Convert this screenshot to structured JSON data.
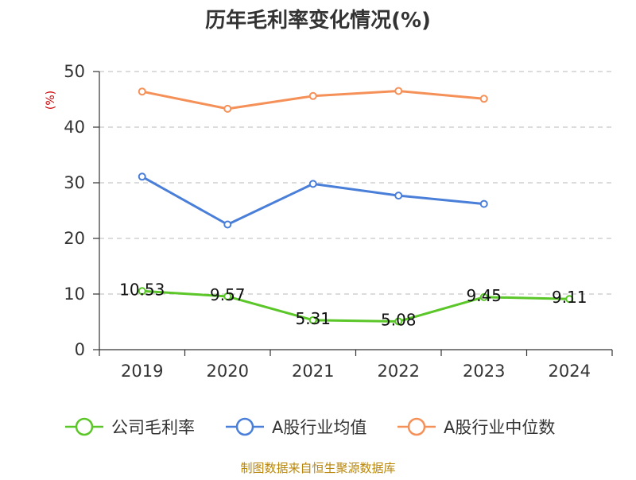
{
  "chart_data": {
    "type": "line",
    "title": "历年毛利率变化情况(%)",
    "ylabel": "(%)",
    "xlabel": "",
    "categories": [
      "2019",
      "2020",
      "2021",
      "2022",
      "2023",
      "2024"
    ],
    "ylim": [
      0,
      50
    ],
    "yticks": [
      0,
      10,
      20,
      30,
      40,
      50
    ],
    "grid": true,
    "legend_position": "bottom",
    "series": [
      {
        "name": "公司毛利率",
        "color": "#5ac628",
        "values": [
          10.53,
          9.57,
          5.31,
          5.08,
          9.45,
          9.11
        ],
        "data_labels": [
          "10.53",
          "9.57",
          "5.31",
          "5.08",
          "9.45",
          "9.11"
        ]
      },
      {
        "name": "A股行业均值",
        "color": "#4a7fd9",
        "values": [
          31.1,
          22.5,
          29.8,
          27.7,
          26.2,
          null
        ]
      },
      {
        "name": "A股行业中位数",
        "color": "#f59158",
        "values": [
          46.4,
          43.3,
          45.6,
          46.5,
          45.1,
          null
        ]
      }
    ]
  },
  "footer": {
    "source": "制图数据来自恒生聚源数据库"
  }
}
